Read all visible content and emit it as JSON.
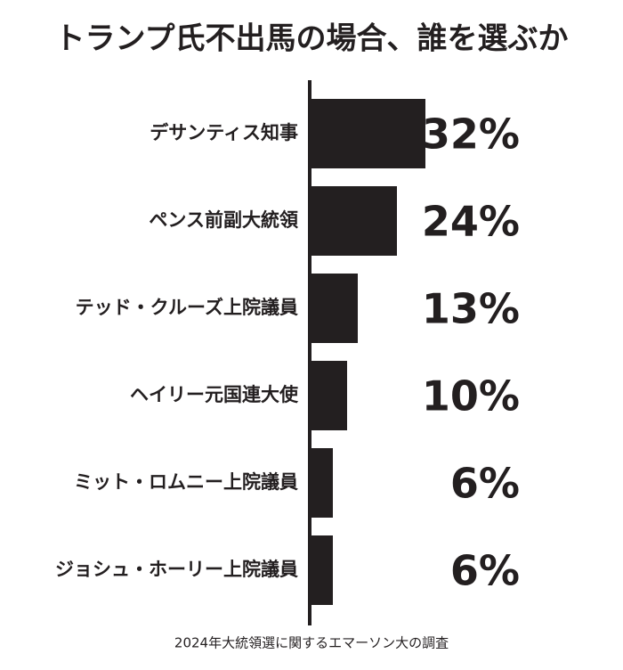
{
  "chart_data": {
    "type": "bar",
    "orientation": "horizontal",
    "title": "トランプ氏不出馬の場合、誰を選ぶか",
    "categories": [
      "デサンティス知事",
      "ペンス前副大統領",
      "テッド・クルーズ上院議員",
      "ヘイリー元国連大使",
      "ミット・ロムニー上院議員",
      "ジョシュ・ホーリー上院議員"
    ],
    "values": [
      32,
      24,
      13,
      10,
      6,
      6
    ],
    "value_labels": [
      "32%",
      "24%",
      "13%",
      "10%",
      "6%",
      "6%"
    ],
    "color": "#231f20",
    "source": "2024年大統領選に関するエマーソン大の調査"
  }
}
